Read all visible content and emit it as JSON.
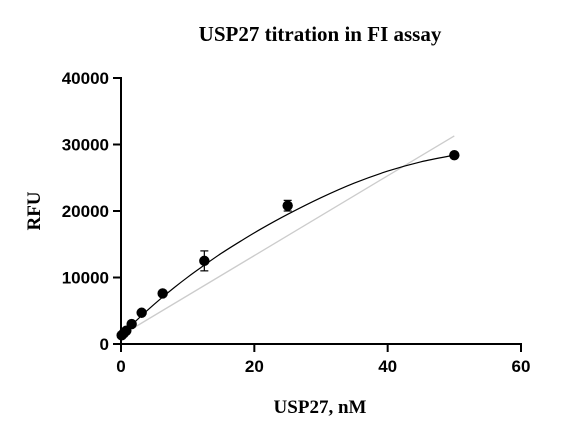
{
  "chart_data": {
    "type": "scatter",
    "title": "USP27 titration in FI assay",
    "xlabel": "USP27, nM",
    "ylabel": "RFU",
    "xlim": [
      0,
      60
    ],
    "ylim": [
      0,
      40000
    ],
    "x_ticks": [
      0,
      20,
      40,
      60
    ],
    "y_ticks": [
      0,
      10000,
      20000,
      30000,
      40000
    ],
    "x_tick_labels": [
      "0",
      "20",
      "40",
      "60"
    ],
    "y_tick_labels": [
      "0",
      "10000",
      "20000",
      "30000",
      "40000"
    ],
    "grid": false,
    "colors": {
      "points": "#000000",
      "fit_curve": "#000000",
      "linear_reference": "#cccccc"
    },
    "series": [
      {
        "points": [
          {
            "x": 0.1,
            "y": 1300,
            "err": 150
          },
          {
            "x": 0.4,
            "y": 1600,
            "err": 150
          },
          {
            "x": 0.8,
            "y": 2000,
            "err": 150
          },
          {
            "x": 1.6,
            "y": 3000,
            "err": 200
          },
          {
            "x": 3.1,
            "y": 4700,
            "err": 250
          },
          {
            "x": 6.25,
            "y": 7600,
            "err": 300
          },
          {
            "x": 12.5,
            "y": 12500,
            "err": 1500
          },
          {
            "x": 25,
            "y": 20800,
            "err": 800
          },
          {
            "x": 50,
            "y": 28400,
            "err": 300
          }
        ]
      }
    ],
    "fit_curve": {
      "x": [
        0,
        2,
        4,
        6,
        8,
        10,
        12,
        15,
        18,
        21,
        25,
        30,
        35,
        40,
        45,
        50
      ],
      "y": [
        1300,
        3250,
        5100,
        6850,
        8500,
        10050,
        11500,
        13600,
        15500,
        17300,
        19500,
        22000,
        24200,
        26000,
        27400,
        28400
      ]
    },
    "linear_reference": {
      "x": [
        0,
        50
      ],
      "y": [
        1300,
        31300
      ]
    }
  }
}
